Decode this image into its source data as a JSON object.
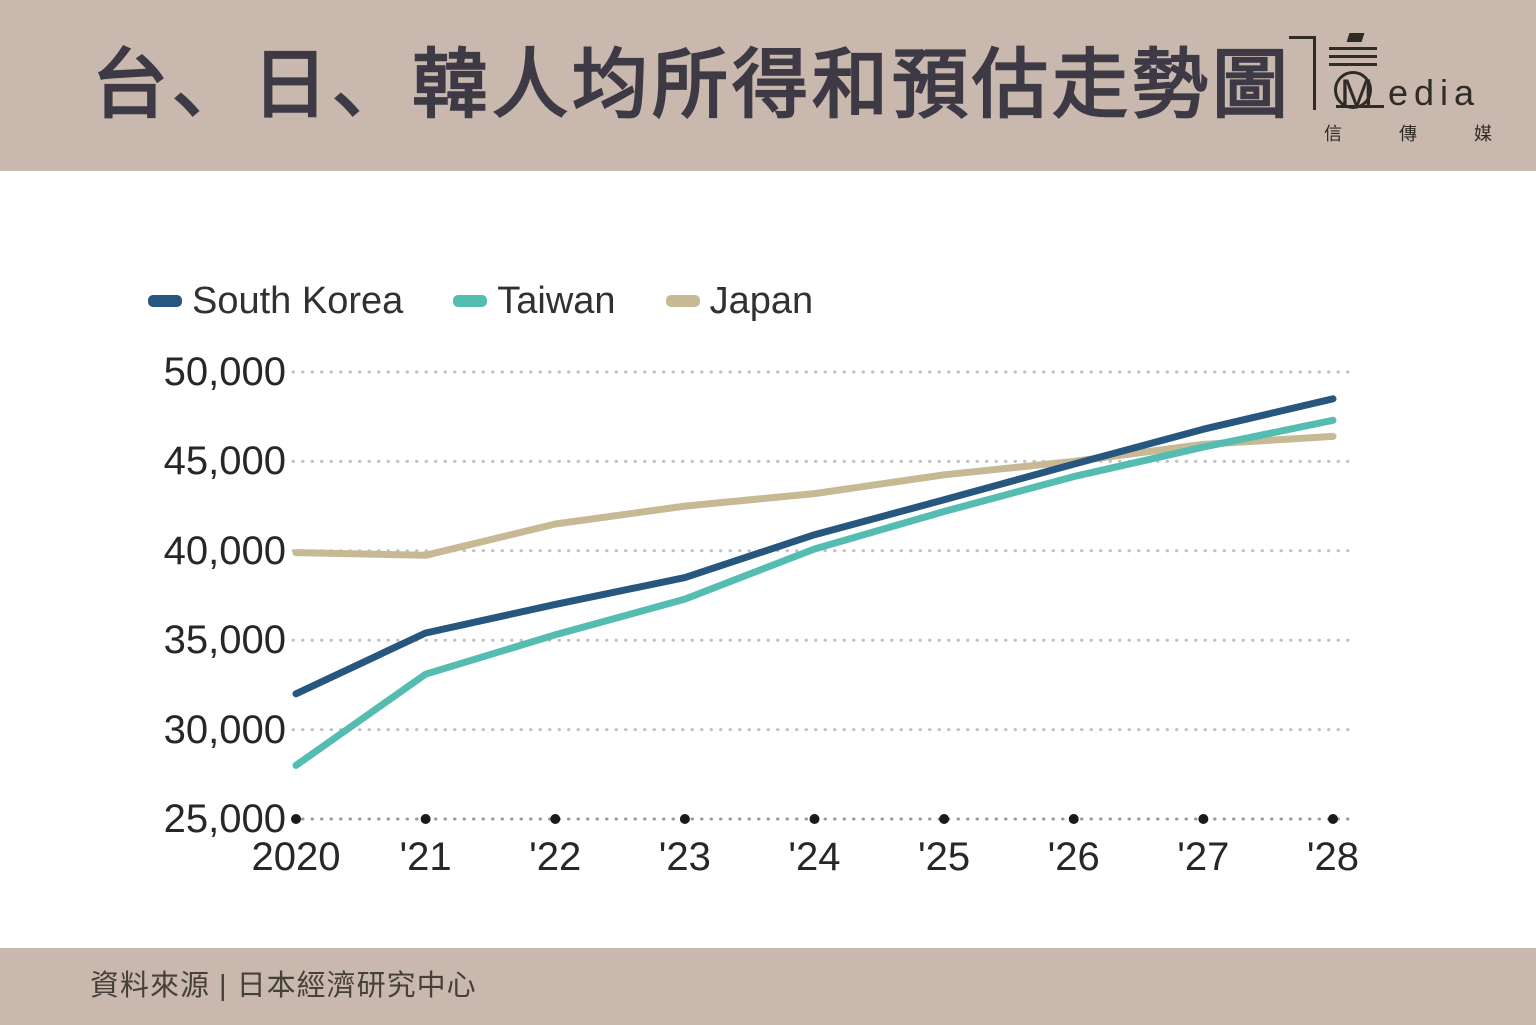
{
  "header": {
    "title": "台、日、韓人均所得和預估走勢圖"
  },
  "logo": {
    "monogram": "M",
    "name_latin": "edia",
    "name_cjk": "信傳媒"
  },
  "footer": {
    "source": "資料來源 | 日本經濟研究中心"
  },
  "chart_data": {
    "type": "line",
    "title": "台、日、韓人均所得和預估走勢圖",
    "categories": [
      "2020",
      "'21",
      "'22",
      "'23",
      "'24",
      "'25",
      "'26",
      "'27",
      "'28"
    ],
    "series": [
      {
        "name": "South Korea",
        "color": "#27567e",
        "values": [
          32000,
          35400,
          37000,
          38500,
          40900,
          42850,
          44850,
          46800,
          48500
        ]
      },
      {
        "name": "Taiwan",
        "color": "#55bcb2",
        "values": [
          28000,
          33100,
          35300,
          37300,
          40100,
          42200,
          44150,
          45800,
          47300
        ]
      },
      {
        "name": "Japan",
        "color": "#c6b993",
        "values": [
          39900,
          39750,
          41500,
          42500,
          43200,
          44250,
          45000,
          45950,
          46400
        ]
      }
    ],
    "ylim": [
      25000,
      50000
    ],
    "yticks": [
      50000,
      45000,
      40000,
      35000,
      30000,
      25000
    ],
    "grid": "dotted-horizontal",
    "legend_position": "top-left",
    "source_note": "資料來源 | 日本經濟研究中心"
  }
}
